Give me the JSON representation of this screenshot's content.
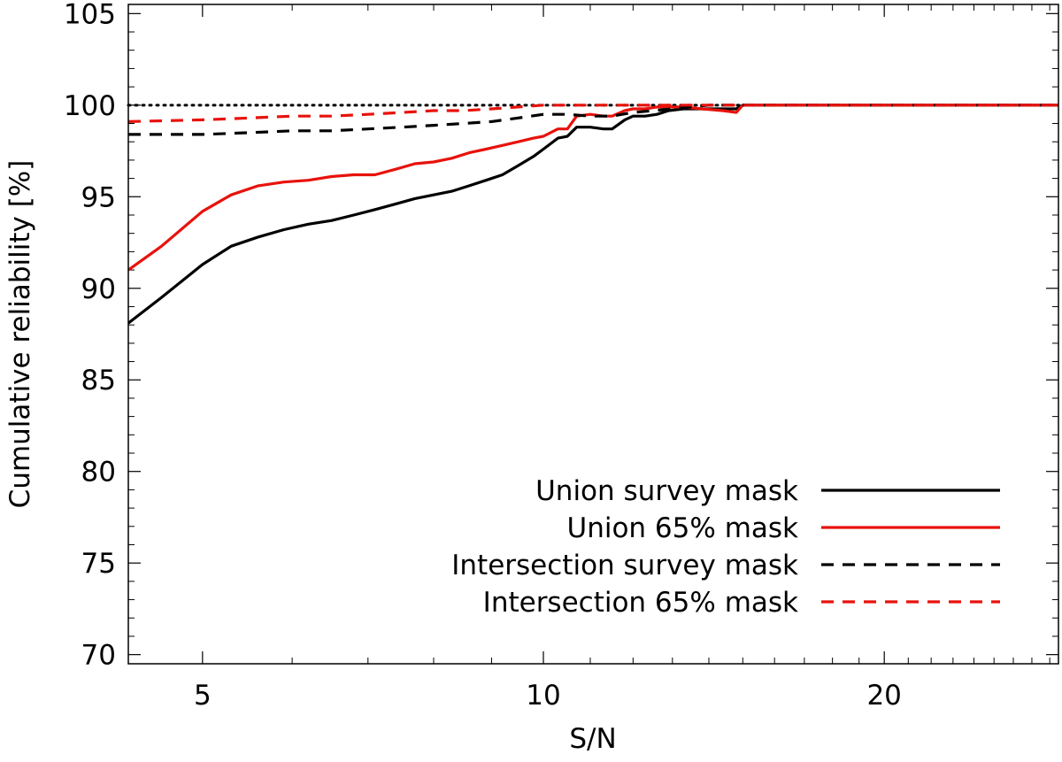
{
  "chart_data": {
    "type": "line",
    "title": "",
    "xlabel": "S/N",
    "ylabel": "Cumulative reliability [%]",
    "xscale": "log",
    "xlim": [
      4.3,
      28.5
    ],
    "ylim": [
      69.5,
      105.5
    ],
    "xticks": [
      5,
      10,
      20
    ],
    "xtick_labels": [
      "5",
      "10",
      "20"
    ],
    "yticks": [
      70,
      75,
      80,
      85,
      90,
      95,
      100,
      105
    ],
    "ytick_labels": [
      "70",
      "75",
      "80",
      "85",
      "90",
      "95",
      "100",
      "105"
    ],
    "grid": false,
    "legend_position": "bottom-right",
    "reference_line": {
      "y": 100,
      "style": "dotted",
      "color": "#000000"
    },
    "series": [
      {
        "name": "Union survey mask",
        "color": "#000000",
        "dash": "solid",
        "points": [
          [
            4.3,
            88.1
          ],
          [
            4.6,
            89.5
          ],
          [
            5.0,
            91.3
          ],
          [
            5.3,
            92.3
          ],
          [
            5.6,
            92.8
          ],
          [
            5.9,
            93.2
          ],
          [
            6.2,
            93.5
          ],
          [
            6.5,
            93.7
          ],
          [
            6.8,
            94.0
          ],
          [
            7.1,
            94.3
          ],
          [
            7.4,
            94.6
          ],
          [
            7.7,
            94.9
          ],
          [
            8.0,
            95.1
          ],
          [
            8.3,
            95.3
          ],
          [
            8.6,
            95.6
          ],
          [
            8.9,
            95.9
          ],
          [
            9.2,
            96.2
          ],
          [
            9.5,
            96.7
          ],
          [
            9.8,
            97.2
          ],
          [
            10.0,
            97.6
          ],
          [
            10.3,
            98.2
          ],
          [
            10.5,
            98.3
          ],
          [
            10.7,
            98.8
          ],
          [
            11.0,
            98.8
          ],
          [
            11.3,
            98.7
          ],
          [
            11.5,
            98.7
          ],
          [
            11.8,
            99.2
          ],
          [
            12.0,
            99.4
          ],
          [
            12.3,
            99.4
          ],
          [
            12.6,
            99.5
          ],
          [
            12.9,
            99.7
          ],
          [
            13.3,
            99.8
          ],
          [
            13.8,
            99.8
          ],
          [
            14.4,
            99.8
          ],
          [
            14.8,
            99.8
          ],
          [
            15.0,
            100.0
          ],
          [
            17.0,
            100.0
          ],
          [
            20.0,
            100.0
          ],
          [
            28.5,
            100.0
          ]
        ]
      },
      {
        "name": "Union 65% mask",
        "color": "#e8120c",
        "dash": "solid",
        "points": [
          [
            4.3,
            91.0
          ],
          [
            4.6,
            92.3
          ],
          [
            5.0,
            94.2
          ],
          [
            5.3,
            95.1
          ],
          [
            5.6,
            95.6
          ],
          [
            5.9,
            95.8
          ],
          [
            6.2,
            95.9
          ],
          [
            6.5,
            96.1
          ],
          [
            6.8,
            96.2
          ],
          [
            7.1,
            96.2
          ],
          [
            7.4,
            96.5
          ],
          [
            7.7,
            96.8
          ],
          [
            8.0,
            96.9
          ],
          [
            8.3,
            97.1
          ],
          [
            8.6,
            97.4
          ],
          [
            8.9,
            97.6
          ],
          [
            9.2,
            97.8
          ],
          [
            9.5,
            98.0
          ],
          [
            9.8,
            98.2
          ],
          [
            10.0,
            98.3
          ],
          [
            10.3,
            98.7
          ],
          [
            10.5,
            98.7
          ],
          [
            10.7,
            99.4
          ],
          [
            11.0,
            99.5
          ],
          [
            11.3,
            99.4
          ],
          [
            11.5,
            99.4
          ],
          [
            11.8,
            99.7
          ],
          [
            12.0,
            99.8
          ],
          [
            12.3,
            99.8
          ],
          [
            12.6,
            99.9
          ],
          [
            12.9,
            99.9
          ],
          [
            13.3,
            99.9
          ],
          [
            13.8,
            99.8
          ],
          [
            14.4,
            99.7
          ],
          [
            14.8,
            99.6
          ],
          [
            15.0,
            100.0
          ],
          [
            17.0,
            100.0
          ],
          [
            20.0,
            100.0
          ],
          [
            28.5,
            100.0
          ]
        ]
      },
      {
        "name": "Intersection survey mask",
        "color": "#000000",
        "dash": "dashed",
        "points": [
          [
            4.3,
            98.4
          ],
          [
            5.0,
            98.4
          ],
          [
            5.5,
            98.5
          ],
          [
            6.0,
            98.6
          ],
          [
            6.5,
            98.6
          ],
          [
            7.0,
            98.7
          ],
          [
            7.5,
            98.8
          ],
          [
            8.0,
            98.9
          ],
          [
            8.5,
            99.0
          ],
          [
            9.0,
            99.1
          ],
          [
            9.5,
            99.3
          ],
          [
            10.0,
            99.5
          ],
          [
            10.5,
            99.5
          ],
          [
            11.0,
            99.4
          ],
          [
            11.5,
            99.4
          ],
          [
            12.0,
            99.6
          ],
          [
            12.5,
            99.7
          ],
          [
            13.0,
            99.8
          ],
          [
            13.5,
            99.9
          ],
          [
            14.0,
            100.0
          ],
          [
            17.0,
            100.0
          ],
          [
            20.0,
            100.0
          ],
          [
            28.5,
            100.0
          ]
        ]
      },
      {
        "name": "Intersection 65% mask",
        "color": "#e8120c",
        "dash": "dashed",
        "points": [
          [
            4.3,
            99.1
          ],
          [
            5.0,
            99.2
          ],
          [
            5.5,
            99.3
          ],
          [
            6.0,
            99.4
          ],
          [
            6.5,
            99.4
          ],
          [
            7.0,
            99.5
          ],
          [
            7.5,
            99.6
          ],
          [
            8.0,
            99.7
          ],
          [
            8.5,
            99.7
          ],
          [
            9.0,
            99.8
          ],
          [
            9.5,
            99.9
          ],
          [
            10.0,
            100.0
          ],
          [
            11.0,
            100.0
          ],
          [
            12.0,
            100.0
          ],
          [
            14.0,
            100.0
          ],
          [
            17.0,
            100.0
          ],
          [
            20.0,
            100.0
          ],
          [
            28.5,
            100.0
          ]
        ]
      }
    ]
  }
}
